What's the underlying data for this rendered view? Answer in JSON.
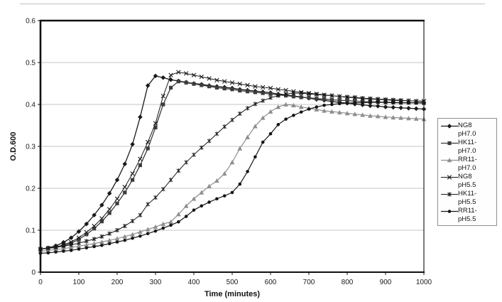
{
  "chart_data": {
    "type": "line",
    "title": "",
    "xlabel": "Time (minutes)",
    "ylabel": "O.D.600",
    "xlim": [
      0,
      1000
    ],
    "ylim": [
      0,
      0.6
    ],
    "x_ticks": [
      0,
      100,
      200,
      300,
      400,
      500,
      600,
      700,
      800,
      900,
      1000
    ],
    "y_ticks": [
      0,
      0.1,
      0.2,
      0.3,
      0.4,
      0.5,
      0.6
    ],
    "y_tick_labels": [
      "0",
      "0.1",
      "0.2",
      "0.3",
      "0.4",
      "0.5",
      "0.6"
    ],
    "grid": "horizontal",
    "legend_position": "right",
    "style": {
      "background": "#ffffff",
      "grid_color": "#c4c4c4",
      "frame_color": "#111111",
      "legend_border": "#8f8f8f",
      "legend_background": "#fefefe",
      "text_color": "#1a1a1a"
    },
    "x": [
      0,
      20,
      40,
      60,
      80,
      100,
      120,
      140,
      160,
      180,
      200,
      220,
      240,
      260,
      280,
      300,
      320,
      340,
      360,
      380,
      400,
      420,
      440,
      460,
      480,
      500,
      520,
      540,
      560,
      580,
      600,
      620,
      640,
      660,
      680,
      700,
      720,
      740,
      760,
      780,
      800,
      820,
      840,
      860,
      880,
      900,
      920,
      940,
      960,
      980,
      1000
    ],
    "series": [
      {
        "id": "ng8-ph70",
        "name": "NG8 pH7.0",
        "legend_line1": "NG8",
        "legend_line2": "pH7.0",
        "marker": "diamond",
        "color": "#1a1a1a",
        "line_width": 1.3,
        "values": [
          0.055,
          0.058,
          0.063,
          0.071,
          0.082,
          0.097,
          0.115,
          0.136,
          0.16,
          0.188,
          0.22,
          0.258,
          0.305,
          0.37,
          0.445,
          0.468,
          0.464,
          0.459,
          0.456,
          0.453,
          0.45,
          0.448,
          0.445,
          0.443,
          0.441,
          0.439,
          0.436,
          0.434,
          0.432,
          0.43,
          0.428,
          0.425,
          0.423,
          0.42,
          0.418,
          0.415,
          0.412,
          0.41,
          0.407,
          0.405,
          0.403,
          0.401,
          0.399,
          0.397,
          0.396,
          0.394,
          0.393,
          0.392,
          0.391,
          0.39,
          0.389
        ]
      },
      {
        "id": "hk11-ph70",
        "name": "HK11-pH7.0",
        "legend_line1": "HK11-",
        "legend_line2": "pH7.0",
        "marker": "square",
        "color": "#3c3c3c",
        "line_width": 1.3,
        "values": [
          0.055,
          0.057,
          0.059,
          0.063,
          0.069,
          0.078,
          0.09,
          0.104,
          0.121,
          0.141,
          0.164,
          0.19,
          0.22,
          0.255,
          0.295,
          0.345,
          0.4,
          0.44,
          0.455,
          0.452,
          0.449,
          0.446,
          0.443,
          0.44,
          0.438,
          0.436,
          0.433,
          0.431,
          0.429,
          0.427,
          0.425,
          0.423,
          0.421,
          0.419,
          0.417,
          0.416,
          0.414,
          0.413,
          0.411,
          0.41,
          0.409,
          0.408,
          0.407,
          0.406,
          0.406,
          0.405,
          0.405,
          0.404,
          0.404,
          0.404,
          0.403
        ]
      },
      {
        "id": "rr11-ph70",
        "name": "RR11-pH7.0",
        "legend_line1": "RR11-",
        "legend_line2": "pH7.0",
        "marker": "triangle",
        "color": "#8e8e8e",
        "line_width": 1.2,
        "values": [
          0.05,
          0.052,
          0.054,
          0.056,
          0.059,
          0.062,
          0.065,
          0.068,
          0.072,
          0.076,
          0.08,
          0.085,
          0.09,
          0.096,
          0.102,
          0.108,
          0.115,
          0.12,
          0.138,
          0.158,
          0.175,
          0.19,
          0.205,
          0.218,
          0.235,
          0.262,
          0.295,
          0.322,
          0.348,
          0.368,
          0.383,
          0.394,
          0.4,
          0.398,
          0.394,
          0.391,
          0.388,
          0.385,
          0.383,
          0.381,
          0.379,
          0.377,
          0.375,
          0.373,
          0.372,
          0.37,
          0.369,
          0.368,
          0.367,
          0.366,
          0.365
        ]
      },
      {
        "id": "ng8-ph55",
        "name": "NG8 pH5.5",
        "legend_line1": "NG8",
        "legend_line2": "pH5.5",
        "marker": "x",
        "color": "#1a1a1a",
        "line_width": 1,
        "values": [
          0.055,
          0.057,
          0.06,
          0.065,
          0.072,
          0.082,
          0.095,
          0.11,
          0.128,
          0.15,
          0.175,
          0.203,
          0.235,
          0.27,
          0.31,
          0.355,
          0.42,
          0.47,
          0.477,
          0.474,
          0.47,
          0.466,
          0.462,
          0.458,
          0.455,
          0.452,
          0.449,
          0.446,
          0.443,
          0.441,
          0.439,
          0.436,
          0.434,
          0.431,
          0.429,
          0.427,
          0.425,
          0.423,
          0.421,
          0.419,
          0.417,
          0.416,
          0.414,
          0.413,
          0.412,
          0.411,
          0.41,
          0.409,
          0.409,
          0.408,
          0.408
        ]
      },
      {
        "id": "hk11-ph55",
        "name": "HK11-pH5.5",
        "legend_line1": "HK11-",
        "legend_line2": "pH5.5",
        "marker": "asterisk",
        "color": "#1a1a1a",
        "line_width": 1,
        "values": [
          0.055,
          0.057,
          0.059,
          0.062,
          0.065,
          0.069,
          0.074,
          0.079,
          0.085,
          0.092,
          0.1,
          0.11,
          0.122,
          0.136,
          0.162,
          0.178,
          0.198,
          0.22,
          0.242,
          0.262,
          0.28,
          0.297,
          0.313,
          0.33,
          0.347,
          0.363,
          0.378,
          0.391,
          0.401,
          0.409,
          0.416,
          0.421,
          0.425,
          0.427,
          0.427,
          0.425,
          0.424,
          0.422,
          0.421,
          0.419,
          0.418,
          0.417,
          0.415,
          0.414,
          0.413,
          0.412,
          0.411,
          0.41,
          0.409,
          0.408,
          0.407
        ]
      },
      {
        "id": "rr11-ph55",
        "name": "RR11-pH5.5",
        "legend_line1": "RR11-",
        "legend_line2": "pH5.5",
        "marker": "circle",
        "color": "#161616",
        "line_width": 1.2,
        "values": [
          0.045,
          0.046,
          0.048,
          0.05,
          0.052,
          0.055,
          0.058,
          0.061,
          0.064,
          0.068,
          0.072,
          0.076,
          0.081,
          0.086,
          0.092,
          0.098,
          0.105,
          0.112,
          0.12,
          0.133,
          0.148,
          0.158,
          0.167,
          0.175,
          0.182,
          0.19,
          0.21,
          0.24,
          0.275,
          0.31,
          0.33,
          0.352,
          0.365,
          0.374,
          0.382,
          0.389,
          0.394,
          0.398,
          0.4,
          0.402,
          0.403,
          0.404,
          0.404,
          0.405,
          0.405,
          0.405,
          0.404,
          0.404,
          0.404,
          0.404,
          0.404
        ]
      }
    ]
  }
}
